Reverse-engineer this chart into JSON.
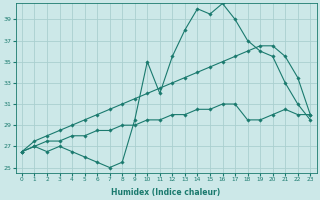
{
  "xlabel": "Humidex (Indice chaleur)",
  "bg_color": "#cce8e8",
  "grid_color": "#aacfcf",
  "line_color": "#1a7a6e",
  "ylim": [
    24.5,
    40.5
  ],
  "xlim": [
    -0.5,
    23.5
  ],
  "yticks": [
    25,
    27,
    29,
    31,
    33,
    35,
    37,
    39
  ],
  "xticks": [
    0,
    1,
    2,
    3,
    4,
    5,
    6,
    7,
    8,
    9,
    10,
    11,
    12,
    13,
    14,
    15,
    16,
    17,
    18,
    19,
    20,
    21,
    22,
    23
  ],
  "xtick_labels": [
    "0",
    "1",
    "2",
    "3",
    "4",
    "5",
    "6",
    "7",
    "8",
    "9",
    "10",
    "11",
    "12",
    "13",
    "14",
    "15",
    "16",
    "17",
    "18",
    "19",
    "20",
    "21",
    "22",
    "23"
  ],
  "line1_y": [
    26.5,
    27.0,
    26.5,
    27.0,
    26.5,
    26.0,
    25.5,
    25.0,
    25.5,
    29.5,
    35.0,
    32.0,
    35.5,
    38.0,
    40.0,
    39.5,
    40.5,
    39.0,
    37.0,
    36.0,
    35.5,
    33.0,
    31.0,
    29.5
  ],
  "line2_y": [
    26.5,
    27.5,
    28.0,
    28.5,
    29.0,
    29.5,
    30.0,
    30.5,
    31.0,
    31.5,
    32.0,
    32.5,
    33.0,
    33.5,
    34.0,
    34.5,
    35.0,
    35.5,
    36.0,
    36.5,
    36.5,
    35.5,
    33.5,
    30.0
  ],
  "line3_y": [
    26.5,
    27.0,
    27.5,
    27.5,
    28.0,
    28.0,
    28.5,
    28.5,
    29.0,
    29.0,
    29.5,
    29.5,
    30.0,
    30.0,
    30.5,
    30.5,
    31.0,
    31.0,
    29.5,
    29.5,
    30.0,
    30.5,
    30.0,
    30.0
  ]
}
